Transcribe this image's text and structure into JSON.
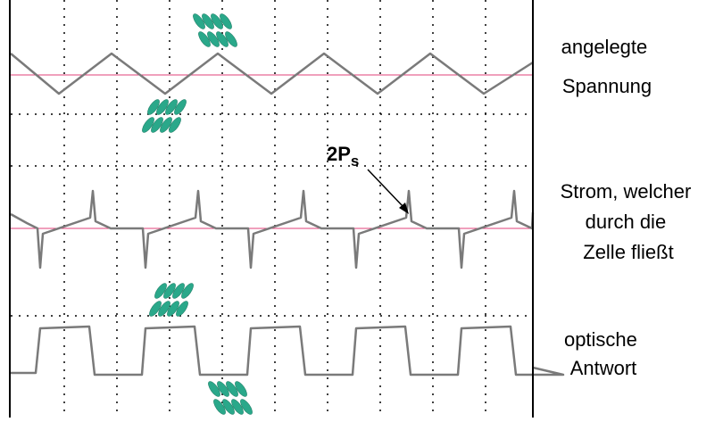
{
  "labels": {
    "voltage": [
      "angelegte",
      "Spannung"
    ],
    "current": [
      "Strom, welcher",
      "durch die",
      "Zelle fließt"
    ],
    "optical": [
      "optische",
      "Antwort"
    ]
  },
  "annotation": {
    "main": "2P",
    "sub": "s"
  }
}
